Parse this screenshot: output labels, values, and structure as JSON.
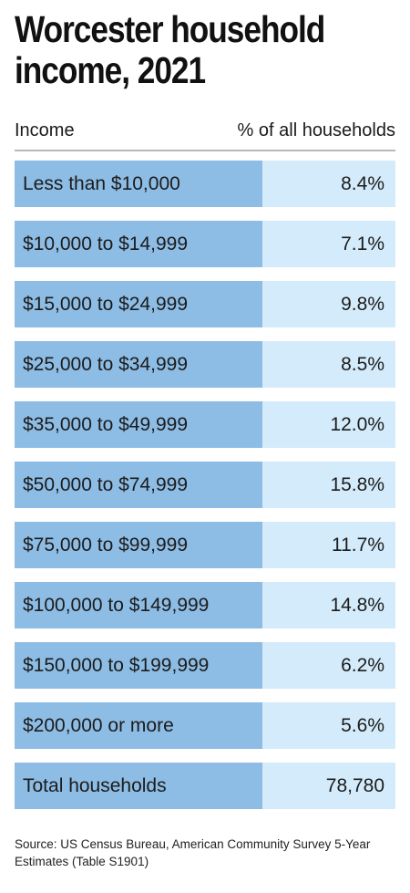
{
  "title_line1": "Worcester household",
  "title_line2": "income, 2021",
  "column_headers": {
    "income": "Income",
    "percent": "% of all households"
  },
  "colors": {
    "income_cell": "#8dbce4",
    "percent_cell": "#d3ebfa",
    "header_rule": "#b9b9b9"
  },
  "chart_data": {
    "type": "table",
    "columns": [
      "Income",
      "% of all households"
    ],
    "rows": [
      {
        "income": "Less than $10,000",
        "percent": "8.4%"
      },
      {
        "income": "$10,000 to $14,999",
        "percent": "7.1%"
      },
      {
        "income": "$15,000 to $24,999",
        "percent": "9.8%"
      },
      {
        "income": "$25,000 to $34,999",
        "percent": "8.5%"
      },
      {
        "income": "$35,000 to $49,999",
        "percent": "12.0%"
      },
      {
        "income": "$50,000 to $74,999",
        "percent": "15.8%"
      },
      {
        "income": "$75,000 to $99,999",
        "percent": "11.7%"
      },
      {
        "income": "$100,000 to $149,999",
        "percent": "14.8%"
      },
      {
        "income": "$150,000 to $199,999",
        "percent": "6.2%"
      },
      {
        "income": "$200,000 or more",
        "percent": "5.6%"
      },
      {
        "income": "Total households",
        "percent": "78,780"
      }
    ]
  },
  "source": "Source: US Census Bureau, American Community Survey 5-Year Estimates (Table S1901)"
}
